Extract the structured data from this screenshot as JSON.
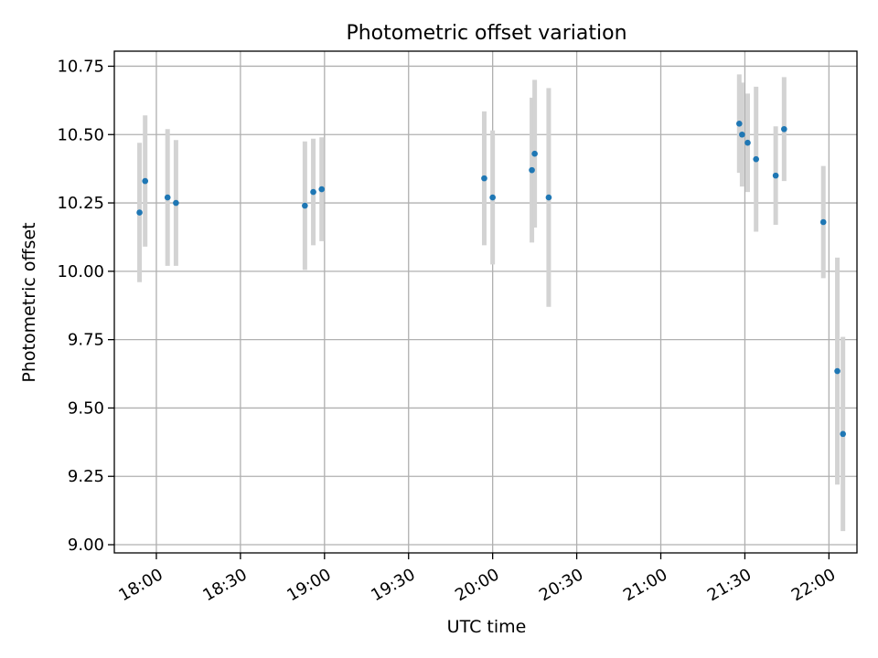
{
  "chart_data": {
    "type": "scatter",
    "title": "Photometric offset variation",
    "xlabel": "UTC time",
    "ylabel": "Photometric offset",
    "xlim": [
      "17:45",
      "22:10"
    ],
    "ylim": [
      8.97,
      10.805
    ],
    "grid": true,
    "x_ticks": [
      "18:00",
      "18:30",
      "19:00",
      "19:30",
      "20:00",
      "20:30",
      "21:00",
      "21:30",
      "22:00"
    ],
    "y_ticks": [
      "9.00",
      "9.25",
      "9.50",
      "9.75",
      "10.00",
      "10.25",
      "10.50",
      "10.75"
    ],
    "point_color": "#1f77b4",
    "errorbar_color": "#d3d3d3",
    "points": [
      {
        "x": "17:54",
        "y": 10.215,
        "err": 0.255
      },
      {
        "x": "17:56",
        "y": 10.33,
        "err": 0.24
      },
      {
        "x": "18:04",
        "y": 10.27,
        "err": 0.25
      },
      {
        "x": "18:07",
        "y": 10.25,
        "err": 0.23
      },
      {
        "x": "18:53",
        "y": 10.24,
        "err": 0.235
      },
      {
        "x": "18:56",
        "y": 10.29,
        "err": 0.195
      },
      {
        "x": "18:59",
        "y": 10.3,
        "err": 0.19
      },
      {
        "x": "19:57",
        "y": 10.34,
        "err": 0.245
      },
      {
        "x": "20:00",
        "y": 10.27,
        "err": 0.245
      },
      {
        "x": "20:14",
        "y": 10.37,
        "err": 0.265
      },
      {
        "x": "20:15",
        "y": 10.43,
        "err": 0.27
      },
      {
        "x": "20:20",
        "y": 10.27,
        "err": 0.4
      },
      {
        "x": "21:28",
        "y": 10.54,
        "err": 0.18
      },
      {
        "x": "21:29",
        "y": 10.5,
        "err": 0.19
      },
      {
        "x": "21:31",
        "y": 10.47,
        "err": 0.18
      },
      {
        "x": "21:34",
        "y": 10.41,
        "err": 0.265
      },
      {
        "x": "21:41",
        "y": 10.35,
        "err": 0.18
      },
      {
        "x": "21:44",
        "y": 10.52,
        "err": 0.19
      },
      {
        "x": "21:58",
        "y": 10.18,
        "err": 0.205
      },
      {
        "x": "22:03",
        "y": 9.635,
        "err": 0.415
      },
      {
        "x": "22:05",
        "y": 9.405,
        "err": 0.355
      }
    ]
  }
}
